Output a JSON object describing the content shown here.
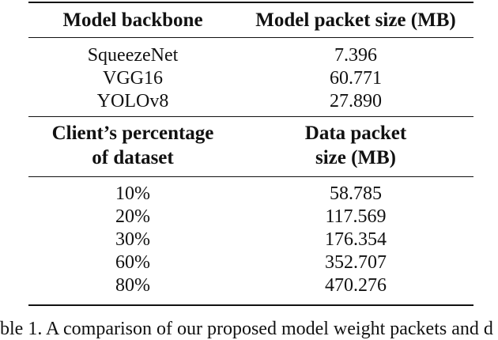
{
  "table": {
    "section1": {
      "header_left": "Model backbone",
      "header_right": "Model packet size (MB)",
      "rows": [
        {
          "left": "SqueezeNet",
          "right": "7.396"
        },
        {
          "left": "VGG16",
          "right": "60.771"
        },
        {
          "left": "YOLOv8",
          "right": "27.890"
        }
      ]
    },
    "section2": {
      "header_left_line1": "Client’s percentage",
      "header_left_line2": "of dataset",
      "header_right_line1": "Data packet",
      "header_right_line2": "size (MB)",
      "rows": [
        {
          "left": "10%",
          "right": "58.785"
        },
        {
          "left": "20%",
          "right": "117.569"
        },
        {
          "left": "30%",
          "right": "176.354"
        },
        {
          "left": "60%",
          "right": "352.707"
        },
        {
          "left": "80%",
          "right": "470.276"
        }
      ]
    }
  },
  "caption": {
    "text": "ble 1. A comparison of our proposed model weight packets and d"
  }
}
